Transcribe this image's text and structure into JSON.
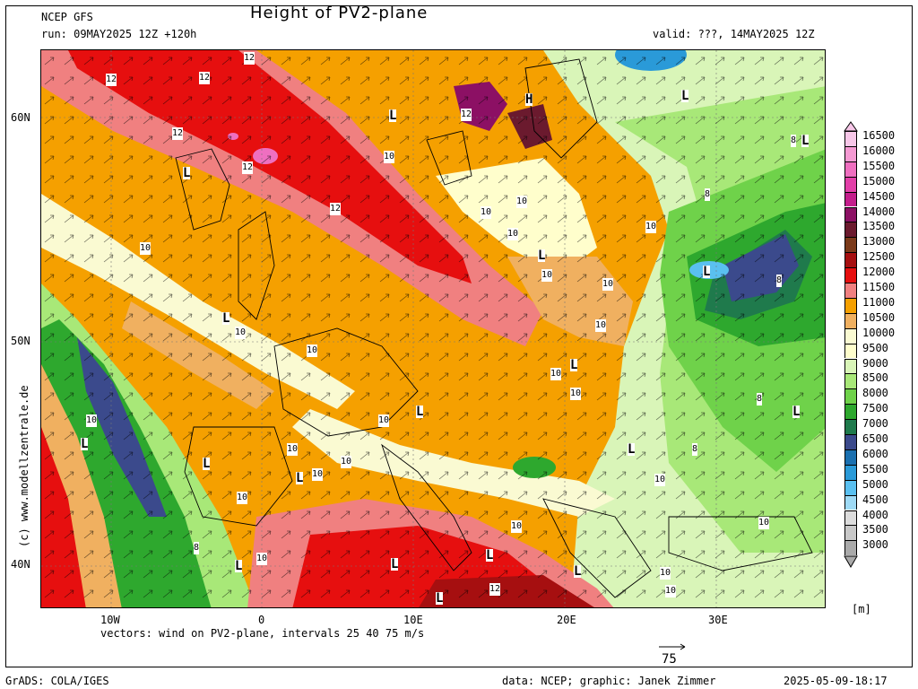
{
  "header": {
    "model": "NCEP GFS",
    "run": "run: 09MAY2025 12Z +120h",
    "title": "Height of PV2-plane",
    "valid": "valid: ???, 14MAY2025 12Z"
  },
  "axes": {
    "lat_labels": [
      "60N",
      "50N",
      "40N"
    ],
    "lon_labels": [
      "10W",
      "0",
      "10E",
      "20E",
      "30E"
    ]
  },
  "map_labels": {
    "contours": [
      "12",
      "12",
      "12",
      "12",
      "12",
      "12",
      "12",
      "12",
      "10",
      "10",
      "10",
      "10",
      "10",
      "10",
      "10",
      "10",
      "10",
      "10",
      "10",
      "10",
      "10",
      "10",
      "10",
      "10",
      "10",
      "10",
      "10",
      "10",
      "10",
      "10",
      "10",
      "10",
      "10",
      "8",
      "8",
      "8",
      "8",
      "8",
      "8"
    ],
    "pressure_centers": [
      "H",
      "L",
      "L",
      "L",
      "L",
      "L",
      "L",
      "L",
      "L",
      "L",
      "L",
      "L",
      "L",
      "L",
      "L",
      "L",
      "L",
      "L",
      "L",
      "L"
    ]
  },
  "legend": {
    "levels": [
      "16500",
      "16000",
      "15500",
      "15000",
      "14500",
      "14000",
      "13500",
      "13000",
      "12500",
      "12000",
      "11500",
      "11000",
      "10500",
      "10000",
      "9500",
      "9000",
      "8500",
      "8000",
      "7500",
      "7000",
      "6500",
      "6000",
      "5500",
      "5000",
      "4500",
      "4000",
      "3500",
      "3000"
    ],
    "colors": [
      "#f7c7e8",
      "#f59ad3",
      "#ef6fc0",
      "#e23fa8",
      "#c41e8c",
      "#8c1064",
      "#6b1a2e",
      "#7b3a1a",
      "#a60f10",
      "#e60f0f",
      "#f08080",
      "#f5a000",
      "#f0b060",
      "#fafad2",
      "#fffecc",
      "#d9f5b8",
      "#a8e878",
      "#6fd24a",
      "#2ea82e",
      "#1f7a4c",
      "#3b4a8c",
      "#1a70b0",
      "#2a9ad8",
      "#5ac0f0",
      "#9edaf5",
      "#dcdcdc",
      "#c8c8c8",
      "#aaaaaa"
    ],
    "unit": "[m]"
  },
  "vector_info": "vectors: wind on PV2-plane, intervals 25 40 75 m/s",
  "ref_vector": "75",
  "watermark": "(c) www.modellzentrale.de",
  "footer": {
    "grads": "GrADS: COLA/IGES",
    "credit": "data: NCEP; graphic: Janek Zimmer",
    "timestamp": "2025-05-09-18:17"
  }
}
